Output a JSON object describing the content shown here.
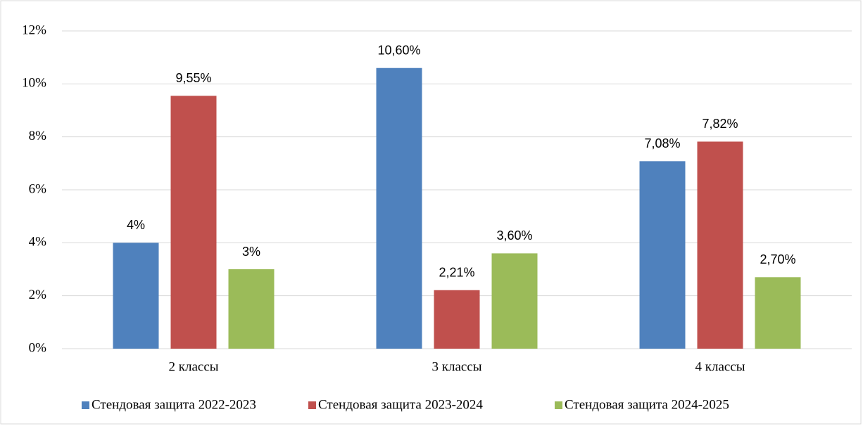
{
  "chart_data": {
    "type": "bar",
    "categories": [
      "2 классы",
      "3 классы",
      "4 классы"
    ],
    "series": [
      {
        "name": "Стендовая защита 2022-2023",
        "color": "#4f81bd",
        "values": [
          4,
          10.6,
          7.08
        ],
        "value_labels": [
          "4%",
          "10,60%",
          "7,08%"
        ]
      },
      {
        "name": "Стендовая защита 2023-2024",
        "color": "#c0504d",
        "values": [
          9.55,
          2.21,
          7.82
        ],
        "value_labels": [
          "9,55%",
          "2,21%",
          "7,82%"
        ]
      },
      {
        "name": "Стендовая защита 2024-2025",
        "color": "#9bbb59",
        "values": [
          3,
          3.6,
          2.7
        ],
        "value_labels": [
          "3%",
          "3,60%",
          "2,70%"
        ]
      }
    ],
    "ylim": [
      0,
      12
    ],
    "yticks": [
      {
        "value": 0,
        "label": "0%"
      },
      {
        "value": 2,
        "label": "2%"
      },
      {
        "value": 4,
        "label": "4%"
      },
      {
        "value": 6,
        "label": "6%"
      },
      {
        "value": 8,
        "label": "8%"
      },
      {
        "value": 10,
        "label": "10%"
      },
      {
        "value": 12,
        "label": "12%"
      }
    ],
    "grid": true,
    "legend": "bottom"
  }
}
